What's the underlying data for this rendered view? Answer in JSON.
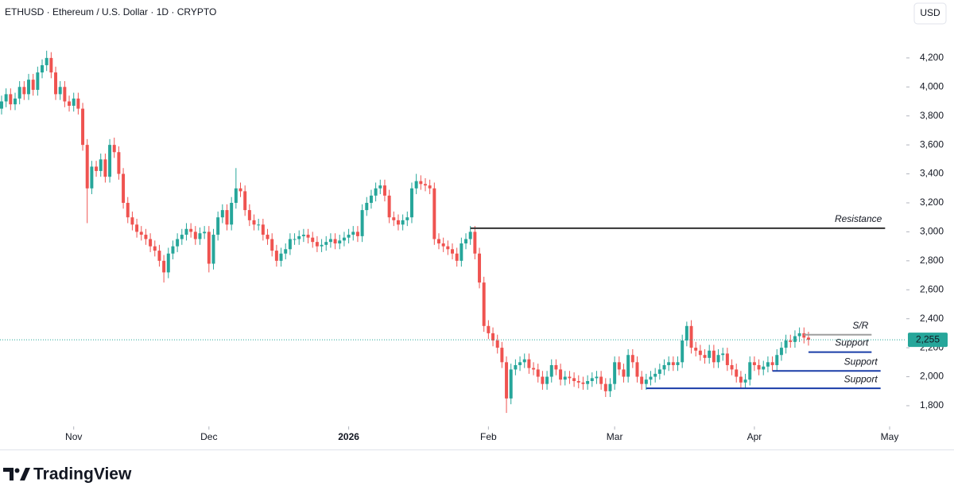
{
  "chart_data": {
    "type": "candlestick",
    "title": "ETHUSD · Ethereum / U.S. Dollar · 1D · CRYPTO",
    "currency": "USD",
    "up_color": "#26a69a",
    "down_color": "#ef5350",
    "open": [
      3850,
      3900,
      3950,
      3880,
      3920,
      4000,
      3950,
      4050,
      3980,
      4100,
      4150,
      4200,
      4100,
      3950,
      4000,
      3900,
      3870,
      3920,
      3850,
      3600,
      3300,
      3450,
      3420,
      3500,
      3380,
      3600,
      3550,
      3400,
      3200,
      3100,
      3050,
      3000,
      2980,
      2950,
      2900,
      2870,
      2800,
      2720,
      2850,
      2900,
      2950,
      2980,
      3020,
      3000,
      2950,
      2990,
      3000,
      2780,
      2980,
      3100,
      3150,
      3050,
      3200,
      3300,
      3280,
      3150,
      3080,
      3050,
      3050,
      2980,
      2950,
      2870,
      2800,
      2850,
      2880,
      2950,
      2950,
      2970,
      2980,
      2960,
      2930,
      2900,
      2910,
      2930,
      2950,
      2920,
      2940,
      2960,
      2980,
      3000,
      2970,
      3150,
      3200,
      3250,
      3300,
      3320,
      3250,
      3100,
      3080,
      3050,
      3080,
      3100,
      3300,
      3350,
      3330,
      3320,
      3300,
      2950,
      2920,
      2900,
      2880,
      2850,
      2800,
      2920,
      2950,
      3000,
      2850,
      2650,
      2350,
      2300,
      2250,
      2200,
      2100,
      1850,
      2050,
      2080,
      2100,
      2120,
      2060,
      2050,
      2000,
      1950,
      2000,
      2080,
      2050,
      1980,
      2000,
      1990,
      1970,
      1960,
      1950,
      1970,
      1990,
      2000,
      1950,
      1900,
      1950,
      2100,
      2050,
      2000,
      2150,
      2100,
      2000,
      1950,
      1980,
      2000,
      2020,
      2050,
      2080,
      2100,
      2080,
      2100,
      2250,
      2350,
      2200,
      2180,
      2150,
      2130,
      2180,
      2100,
      2150,
      2160,
      2080,
      2050,
      2000,
      1960,
      1980,
      2100,
      2080,
      2050,
      2070,
      2100,
      2080,
      2150,
      2200,
      2250,
      2240,
      2280,
      2300,
      2270
    ],
    "high": [
      3940,
      3990,
      3990,
      3960,
      4040,
      4040,
      4090,
      4090,
      4140,
      4190,
      4250,
      4240,
      4140,
      4040,
      4040,
      3940,
      3960,
      3960,
      3890,
      3640,
      3490,
      3490,
      3540,
      3540,
      3640,
      3650,
      3590,
      3440,
      3240,
      3140,
      3090,
      3040,
      3020,
      2990,
      2940,
      2910,
      2840,
      2890,
      2940,
      2990,
      3020,
      3060,
      3060,
      3040,
      3030,
      3040,
      3040,
      3020,
      3140,
      3190,
      3190,
      3240,
      3440,
      3340,
      3320,
      3190,
      3120,
      3090,
      3090,
      3020,
      2990,
      2910,
      2890,
      2920,
      2990,
      2990,
      3010,
      3020,
      3020,
      3000,
      2970,
      2950,
      2970,
      2990,
      2990,
      2980,
      3000,
      3020,
      3040,
      3040,
      3190,
      3240,
      3290,
      3340,
      3360,
      3360,
      3290,
      3140,
      3120,
      3120,
      3140,
      3340,
      3400,
      3390,
      3370,
      3360,
      3340,
      2990,
      2960,
      2940,
      2920,
      2890,
      2960,
      2990,
      3040,
      3040,
      2890,
      2690,
      2390,
      2340,
      2290,
      2240,
      2140,
      2090,
      2120,
      2140,
      2160,
      2160,
      2100,
      2090,
      2040,
      2040,
      2120,
      2120,
      2090,
      2040,
      2040,
      2030,
      2010,
      2000,
      2010,
      2030,
      2040,
      2040,
      1990,
      1990,
      2140,
      2140,
      2090,
      2190,
      2190,
      2140,
      2040,
      2020,
      2040,
      2060,
      2090,
      2120,
      2140,
      2140,
      2140,
      2290,
      2380,
      2390,
      2240,
      2220,
      2190,
      2220,
      2220,
      2190,
      2200,
      2200,
      2120,
      2090,
      2040,
      2020,
      2140,
      2140,
      2120,
      2110,
      2140,
      2140,
      2190,
      2240,
      2290,
      2290,
      2320,
      2340,
      2340,
      2310
    ],
    "low": [
      3810,
      3860,
      3840,
      3840,
      3880,
      3910,
      3910,
      3940,
      3940,
      4060,
      4110,
      4060,
      3910,
      3910,
      3860,
      3830,
      3830,
      3810,
      3560,
      3060,
      3260,
      3380,
      3380,
      3340,
      3340,
      3510,
      3360,
      3160,
      3060,
      3010,
      2960,
      2940,
      2910,
      2860,
      2830,
      2760,
      2650,
      2680,
      2810,
      2860,
      2910,
      2940,
      2960,
      2910,
      2910,
      2950,
      2720,
      2740,
      2940,
      3060,
      3010,
      3010,
      3160,
      3240,
      3110,
      3040,
      3010,
      3010,
      2940,
      2910,
      2830,
      2760,
      2760,
      2810,
      2840,
      2910,
      2910,
      2930,
      2920,
      2890,
      2860,
      2860,
      2870,
      2890,
      2880,
      2880,
      2900,
      2920,
      2940,
      2930,
      2930,
      3110,
      3160,
      3210,
      3260,
      3210,
      3060,
      3040,
      3010,
      3010,
      3040,
      3060,
      3260,
      3290,
      3280,
      3260,
      2910,
      2880,
      2860,
      2840,
      2810,
      2760,
      2760,
      2880,
      2910,
      2810,
      2610,
      2310,
      2260,
      2210,
      2160,
      2060,
      1750,
      1810,
      2010,
      2040,
      2060,
      2020,
      2010,
      1960,
      1910,
      1910,
      1960,
      2010,
      1940,
      1940,
      1950,
      1930,
      1920,
      1910,
      1910,
      1930,
      1950,
      1910,
      1860,
      1860,
      1910,
      2010,
      1960,
      1960,
      2060,
      1960,
      1910,
      1910,
      1940,
      1960,
      1980,
      2010,
      2040,
      2040,
      2040,
      2060,
      2210,
      2160,
      2140,
      2110,
      2090,
      2090,
      2060,
      2060,
      2110,
      2040,
      2010,
      1960,
      1920,
      1920,
      1940,
      2040,
      2010,
      2010,
      2030,
      2040,
      2040,
      2110,
      2160,
      2200,
      2200,
      2240,
      2230,
      2215
    ],
    "close": [
      3900,
      3950,
      3880,
      3920,
      4000,
      3950,
      4050,
      3980,
      4100,
      4150,
      4200,
      4100,
      3950,
      4000,
      3900,
      3870,
      3920,
      3850,
      3600,
      3300,
      3450,
      3420,
      3500,
      3380,
      3600,
      3550,
      3400,
      3200,
      3100,
      3050,
      3000,
      2980,
      2950,
      2900,
      2870,
      2800,
      2720,
      2850,
      2900,
      2950,
      2980,
      3020,
      3000,
      2950,
      2990,
      3000,
      2780,
      2980,
      3100,
      3150,
      3050,
      3200,
      3300,
      3280,
      3150,
      3080,
      3050,
      3050,
      2980,
      2950,
      2870,
      2800,
      2850,
      2880,
      2950,
      2950,
      2970,
      2980,
      2960,
      2930,
      2900,
      2910,
      2930,
      2950,
      2920,
      2940,
      2960,
      2980,
      3000,
      2970,
      3150,
      3200,
      3250,
      3300,
      3320,
      3250,
      3100,
      3080,
      3050,
      3080,
      3100,
      3300,
      3350,
      3330,
      3320,
      3300,
      2950,
      2920,
      2900,
      2880,
      2850,
      2800,
      2920,
      2950,
      3000,
      2850,
      2650,
      2350,
      2300,
      2250,
      2200,
      2100,
      1850,
      2050,
      2080,
      2100,
      2120,
      2060,
      2050,
      2000,
      1950,
      2000,
      2080,
      2050,
      1980,
      2000,
      1990,
      1970,
      1960,
      1950,
      1970,
      1990,
      2000,
      1950,
      1900,
      1950,
      2100,
      2050,
      2000,
      2150,
      2100,
      2000,
      1950,
      1980,
      2000,
      2020,
      2050,
      2080,
      2100,
      2080,
      2100,
      2250,
      2350,
      2200,
      2180,
      2150,
      2130,
      2180,
      2100,
      2150,
      2160,
      2080,
      2050,
      2000,
      1960,
      1980,
      2100,
      2080,
      2050,
      2070,
      2100,
      2080,
      2150,
      2200,
      2250,
      2240,
      2280,
      2300,
      2270,
      2255
    ],
    "last_price": {
      "value": 2255,
      "label": "2,255"
    },
    "xlim": [
      -0.35,
      200.7
    ],
    "xticks": [
      {
        "value": 16,
        "label": "Nov"
      },
      {
        "value": 46,
        "label": "Dec"
      },
      {
        "value": 77,
        "label": "2026"
      },
      {
        "value": 108,
        "label": "Feb"
      },
      {
        "value": 136,
        "label": "Mar"
      },
      {
        "value": 167,
        "label": "Apr"
      },
      {
        "value": 197,
        "label": "May"
      }
    ],
    "ylim": [
      1690,
      4600
    ],
    "yticks": [
      {
        "value": 1800,
        "label": "1,800"
      },
      {
        "value": 2000,
        "label": "2,000"
      },
      {
        "value": 2200,
        "label": "2,200"
      },
      {
        "value": 2400,
        "label": "2,400"
      },
      {
        "value": 2600,
        "label": "2,600"
      },
      {
        "value": 2800,
        "label": "2,800"
      },
      {
        "value": 3000,
        "label": "3,000"
      },
      {
        "value": 3200,
        "label": "3,200"
      },
      {
        "value": 3400,
        "label": "3,400"
      },
      {
        "value": 3600,
        "label": "3,600"
      },
      {
        "value": 3800,
        "label": "3,800"
      },
      {
        "value": 4000,
        "label": "4,000"
      },
      {
        "value": 4200,
        "label": "4,200"
      }
    ],
    "levels": [
      {
        "label": "Resistance",
        "value": 3025,
        "x": [
          104,
          196
        ],
        "color": "#333333"
      },
      {
        "label": "S/R",
        "value": 2290,
        "x": [
          178,
          193
        ],
        "color": "#9e9e9e"
      },
      {
        "label": "Support",
        "value": 2170,
        "x": [
          179,
          193
        ],
        "color": "#1a3da8"
      },
      {
        "label": "Support",
        "value": 2040,
        "x": [
          171,
          195
        ],
        "color": "#1a3da8"
      },
      {
        "label": "Support",
        "value": 1920,
        "x": [
          143,
          195
        ],
        "color": "#1a3da8"
      }
    ]
  },
  "brand": "TradingView"
}
